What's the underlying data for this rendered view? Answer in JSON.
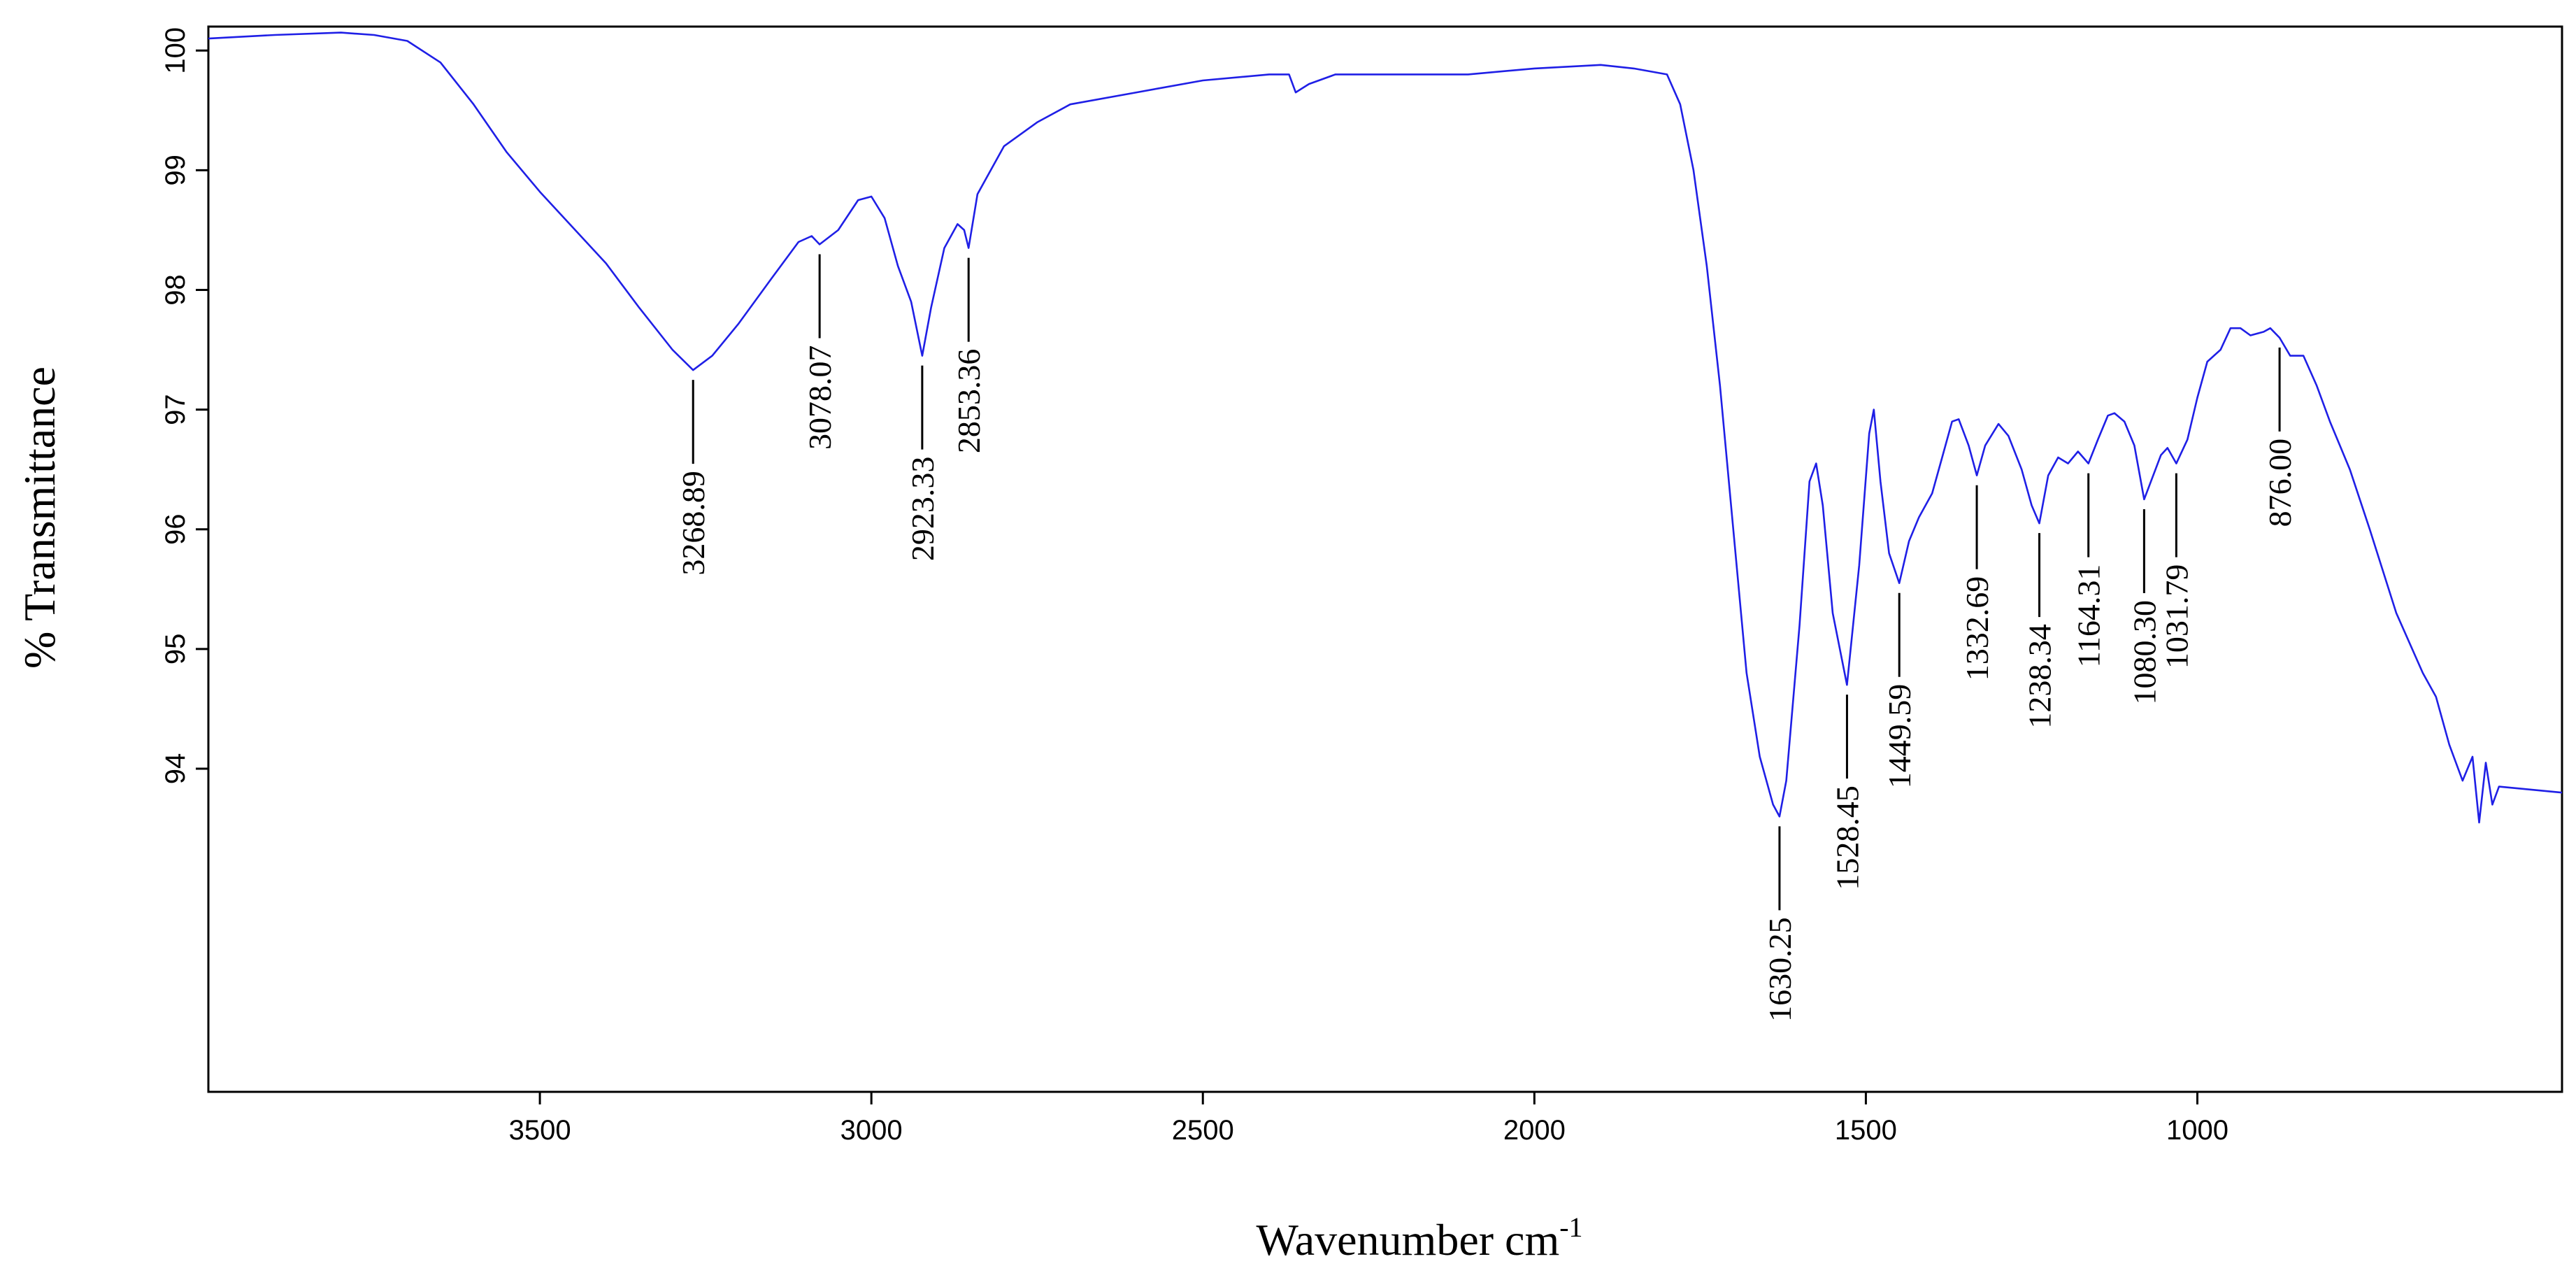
{
  "chart_data": {
    "type": "line",
    "title": "",
    "xlabel": "Wavenumber cm",
    "xlabel_superscript": "-1",
    "ylabel": "% Transmittance",
    "xlim": [
      4000,
      450
    ],
    "ylim": [
      91.3,
      100.2
    ],
    "x_reversed": true,
    "grid": false,
    "legend": "none",
    "x_ticks": [
      3500,
      3000,
      2500,
      2000,
      1500,
      1000
    ],
    "y_ticks": [
      94,
      95,
      96,
      97,
      98,
      99,
      100
    ],
    "series": [
      {
        "color": "#1f1fe6",
        "points": [
          [
            4000,
            100.1
          ],
          [
            3900,
            100.13
          ],
          [
            3800,
            100.15
          ],
          [
            3750,
            100.13
          ],
          [
            3700,
            100.08
          ],
          [
            3650,
            99.9
          ],
          [
            3600,
            99.55
          ],
          [
            3550,
            99.15
          ],
          [
            3500,
            98.82
          ],
          [
            3450,
            98.52
          ],
          [
            3400,
            98.22
          ],
          [
            3350,
            97.85
          ],
          [
            3300,
            97.5
          ],
          [
            3268.89,
            97.33
          ],
          [
            3240,
            97.45
          ],
          [
            3200,
            97.72
          ],
          [
            3150,
            98.1
          ],
          [
            3110,
            98.4
          ],
          [
            3090,
            98.45
          ],
          [
            3078.07,
            98.38
          ],
          [
            3050,
            98.5
          ],
          [
            3020,
            98.75
          ],
          [
            3000,
            98.78
          ],
          [
            2980,
            98.6
          ],
          [
            2960,
            98.2
          ],
          [
            2940,
            97.9
          ],
          [
            2923.33,
            97.45
          ],
          [
            2910,
            97.85
          ],
          [
            2890,
            98.35
          ],
          [
            2870,
            98.55
          ],
          [
            2860,
            98.5
          ],
          [
            2853.36,
            98.35
          ],
          [
            2840,
            98.8
          ],
          [
            2800,
            99.2
          ],
          [
            2750,
            99.4
          ],
          [
            2700,
            99.55
          ],
          [
            2600,
            99.65
          ],
          [
            2500,
            99.75
          ],
          [
            2400,
            99.8
          ],
          [
            2370,
            99.8
          ],
          [
            2360,
            99.65
          ],
          [
            2340,
            99.72
          ],
          [
            2300,
            99.8
          ],
          [
            2200,
            99.8
          ],
          [
            2100,
            99.8
          ],
          [
            2000,
            99.85
          ],
          [
            1900,
            99.88
          ],
          [
            1850,
            99.85
          ],
          [
            1800,
            99.8
          ],
          [
            1780,
            99.55
          ],
          [
            1760,
            99.0
          ],
          [
            1740,
            98.2
          ],
          [
            1720,
            97.2
          ],
          [
            1700,
            96.0
          ],
          [
            1680,
            94.8
          ],
          [
            1660,
            94.1
          ],
          [
            1640,
            93.7
          ],
          [
            1630.25,
            93.6
          ],
          [
            1620,
            93.9
          ],
          [
            1600,
            95.2
          ],
          [
            1585,
            96.4
          ],
          [
            1575,
            96.55
          ],
          [
            1565,
            96.2
          ],
          [
            1550,
            95.3
          ],
          [
            1528.45,
            94.7
          ],
          [
            1510,
            95.7
          ],
          [
            1495,
            96.8
          ],
          [
            1488,
            97.0
          ],
          [
            1478,
            96.4
          ],
          [
            1465,
            95.8
          ],
          [
            1449.59,
            95.55
          ],
          [
            1435,
            95.9
          ],
          [
            1420,
            96.1
          ],
          [
            1400,
            96.3
          ],
          [
            1385,
            96.6
          ],
          [
            1370,
            96.9
          ],
          [
            1360,
            96.92
          ],
          [
            1345,
            96.7
          ],
          [
            1332.69,
            96.45
          ],
          [
            1320,
            96.7
          ],
          [
            1300,
            96.88
          ],
          [
            1285,
            96.78
          ],
          [
            1265,
            96.5
          ],
          [
            1250,
            96.2
          ],
          [
            1238.34,
            96.05
          ],
          [
            1225,
            96.45
          ],
          [
            1210,
            96.6
          ],
          [
            1195,
            96.55
          ],
          [
            1180,
            96.65
          ],
          [
            1164.31,
            96.55
          ],
          [
            1150,
            96.75
          ],
          [
            1135,
            96.95
          ],
          [
            1125,
            96.97
          ],
          [
            1110,
            96.9
          ],
          [
            1095,
            96.7
          ],
          [
            1080.3,
            96.25
          ],
          [
            1070,
            96.4
          ],
          [
            1055,
            96.62
          ],
          [
            1045,
            96.68
          ],
          [
            1031.79,
            96.55
          ],
          [
            1015,
            96.75
          ],
          [
            1000,
            97.1
          ],
          [
            985,
            97.4
          ],
          [
            965,
            97.5
          ],
          [
            950,
            97.68
          ],
          [
            935,
            97.68
          ],
          [
            920,
            97.62
          ],
          [
            900,
            97.65
          ],
          [
            890,
            97.68
          ],
          [
            876,
            97.6
          ],
          [
            860,
            97.45
          ],
          [
            840,
            97.45
          ],
          [
            820,
            97.2
          ],
          [
            800,
            96.9
          ],
          [
            770,
            96.5
          ],
          [
            740,
            96.0
          ],
          [
            700,
            95.3
          ],
          [
            660,
            94.8
          ],
          [
            640,
            94.6
          ],
          [
            620,
            94.2
          ],
          [
            600,
            93.9
          ],
          [
            585,
            94.1
          ],
          [
            575,
            93.55
          ],
          [
            565,
            94.05
          ],
          [
            555,
            93.7
          ],
          [
            545,
            93.85
          ],
          [
            450,
            93.8
          ]
        ]
      }
    ],
    "annotations": [
      {
        "x": 3268.89,
        "label": "3268.89"
      },
      {
        "x": 3078.07,
        "label": "3078.07"
      },
      {
        "x": 2923.33,
        "label": "2923.33"
      },
      {
        "x": 2853.36,
        "label": "2853.36"
      },
      {
        "x": 1630.25,
        "label": "1630.25"
      },
      {
        "x": 1528.45,
        "label": "1528.45"
      },
      {
        "x": 1449.59,
        "label": "1449.59"
      },
      {
        "x": 1332.69,
        "label": "1332.69"
      },
      {
        "x": 1238.34,
        "label": "1238.34"
      },
      {
        "x": 1164.31,
        "label": "1164.31"
      },
      {
        "x": 1080.3,
        "label": "1080.30"
      },
      {
        "x": 1031.79,
        "label": "1031.79"
      },
      {
        "x": 876,
        "label": "876.00"
      }
    ]
  }
}
